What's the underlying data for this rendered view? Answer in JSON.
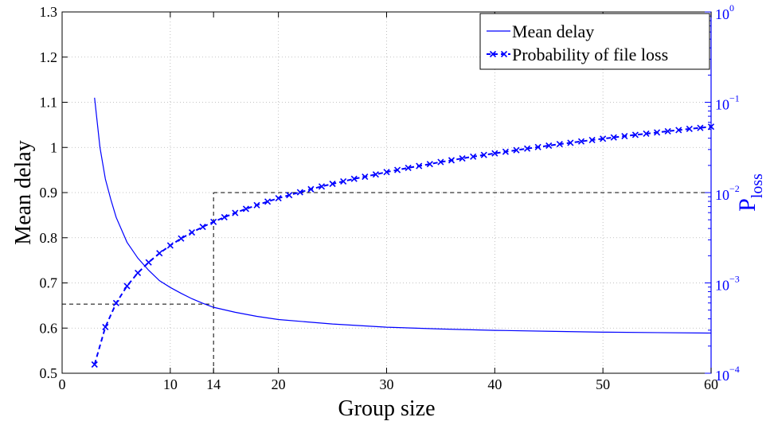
{
  "chart_data": {
    "type": "line",
    "xlabel": "Group size",
    "ylabel_left": "Mean delay",
    "ylabel_right_base": "P",
    "ylabel_right_sub": "loss",
    "xlim": [
      0,
      60
    ],
    "ylim_left": [
      0.5,
      1.3
    ],
    "ylim_right_log10": [
      -4,
      0
    ],
    "right_scale": "log",
    "grid": true,
    "legend_position": "top-right",
    "x_ticks": [
      "0",
      "10",
      "14",
      "20",
      "30",
      "40",
      "50",
      "60"
    ],
    "x_tick_values": [
      0,
      10,
      14,
      20,
      30,
      40,
      50,
      60
    ],
    "y_left_ticks": [
      "0.5",
      "0.6",
      "0.7",
      "0.8",
      "0.9",
      "1",
      "1.1",
      "1.2",
      "1.3"
    ],
    "y_left_tick_values": [
      0.5,
      0.6,
      0.7,
      0.8,
      0.9,
      1.0,
      1.1,
      1.2,
      1.3
    ],
    "y_right_ticks": [
      {
        "base": "10",
        "exp": "−4",
        "log10": -4
      },
      {
        "base": "10",
        "exp": "−3",
        "log10": -3
      },
      {
        "base": "10",
        "exp": "−2",
        "log10": -2
      },
      {
        "base": "10",
        "exp": "−1",
        "log10": -1
      },
      {
        "base": "10",
        "exp": "0",
        "log10": 0
      }
    ],
    "series": [
      {
        "name": "Mean delay",
        "axis": "left",
        "style": "solid",
        "color": "#0000ff",
        "x": [
          3,
          3.5,
          4,
          4.5,
          5,
          6,
          7,
          8,
          9,
          10,
          11,
          12,
          13,
          14,
          16,
          18,
          20,
          25,
          30,
          35,
          40,
          45,
          50,
          55,
          60
        ],
        "y": [
          1.11,
          1.0,
          0.93,
          0.885,
          0.845,
          0.79,
          0.755,
          0.728,
          0.705,
          0.69,
          0.677,
          0.665,
          0.655,
          0.646,
          0.635,
          0.626,
          0.619,
          0.609,
          0.602,
          0.598,
          0.595,
          0.593,
          0.591,
          0.59,
          0.589
        ]
      },
      {
        "name": "Probability of file loss",
        "axis": "right",
        "style": "dashed-x",
        "color": "#0000ff",
        "x": [
          3,
          4,
          5,
          6,
          7,
          8,
          9,
          10,
          11,
          12,
          13,
          14,
          15,
          16,
          17,
          18,
          19,
          20,
          21,
          22,
          23,
          24,
          25,
          26,
          27,
          28,
          29,
          30,
          31,
          32,
          33,
          34,
          35,
          36,
          37,
          38,
          39,
          40,
          41,
          42,
          43,
          44,
          45,
          46,
          47,
          48,
          49,
          50,
          51,
          52,
          53,
          54,
          55,
          56,
          57,
          58,
          59,
          60
        ],
        "y": [
          0.000125,
          0.000325,
          0.000598,
          0.000924,
          0.00129,
          0.00169,
          0.00213,
          0.0026,
          0.0031,
          0.00362,
          0.00417,
          0.00474,
          0.00534,
          0.00596,
          0.0066,
          0.00726,
          0.00795,
          0.00866,
          0.00938,
          0.0101,
          0.0109,
          0.0117,
          0.0125,
          0.0133,
          0.0142,
          0.015,
          0.0159,
          0.0169,
          0.0178,
          0.0188,
          0.0197,
          0.0207,
          0.0218,
          0.0228,
          0.0239,
          0.025,
          0.0261,
          0.0272,
          0.0283,
          0.0295,
          0.0307,
          0.0319,
          0.0331,
          0.0344,
          0.0356,
          0.0369,
          0.0382,
          0.0395,
          0.0408,
          0.0422,
          0.0436,
          0.0449,
          0.0463,
          0.0478,
          0.0492,
          0.0507,
          0.0521,
          0.0536
        ]
      }
    ],
    "reference_lines": [
      {
        "kind": "vertical",
        "x": 14,
        "y_from_left": 0.5,
        "y_to_log10": -2
      },
      {
        "kind": "horizontal",
        "axis": "left",
        "y": 0.653,
        "x_from": 0,
        "x_to": 14
      },
      {
        "kind": "horizontal",
        "axis": "right",
        "log10": -2,
        "x_from": 14,
        "x_to": 60
      }
    ],
    "legend": {
      "items": [
        "Mean delay",
        "Probability of file loss"
      ]
    }
  }
}
